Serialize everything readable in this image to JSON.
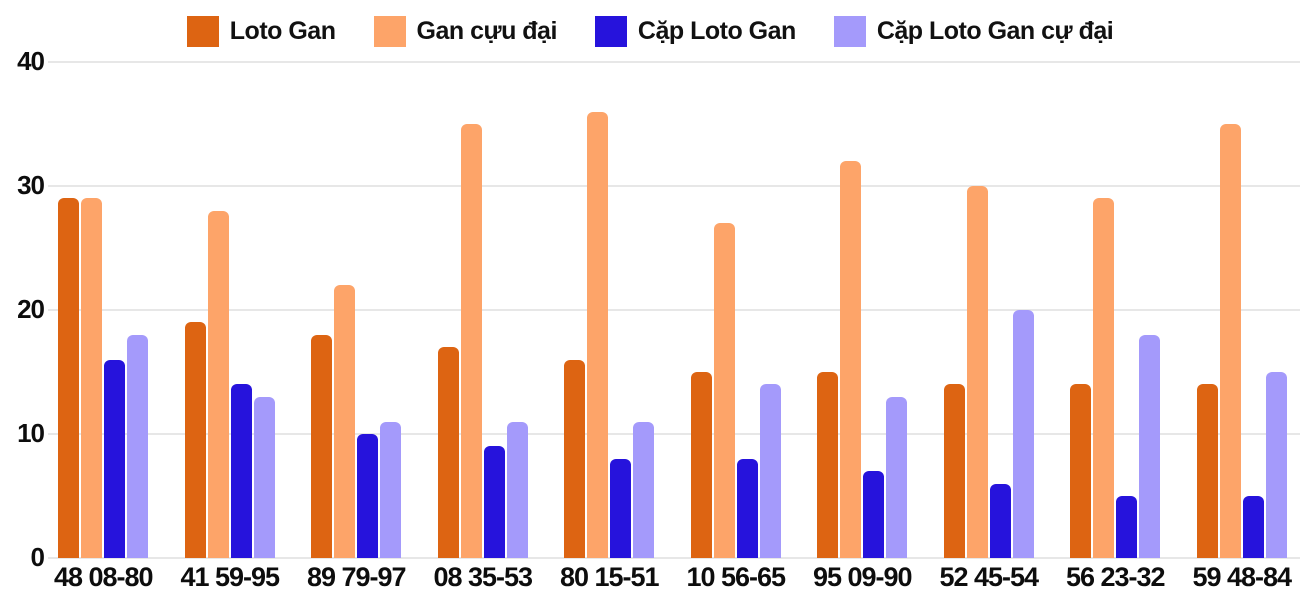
{
  "chart_data": {
    "type": "bar",
    "title": "",
    "xlabel": "",
    "ylabel": "",
    "ylim": [
      0,
      40
    ],
    "yticks": [
      0,
      10,
      20,
      30,
      40
    ],
    "grid": "horizontal",
    "legend_position": "top",
    "categories": [
      "48 08-80",
      "41 59-95",
      "89 79-97",
      "08 35-53",
      "80 15-51",
      "10 56-65",
      "95 09-90",
      "52 45-54",
      "56 23-32",
      "59 48-84"
    ],
    "series": [
      {
        "name": "Loto Gan",
        "color": "#DD6412",
        "values": [
          29,
          19,
          18,
          17,
          16,
          15,
          15,
          14,
          14,
          14
        ]
      },
      {
        "name": "Gan cựu đại",
        "color": "#FDA469",
        "values": [
          29,
          28,
          22,
          35,
          36,
          27,
          32,
          30,
          29,
          35
        ]
      },
      {
        "name": "Cặp Loto Gan",
        "color": "#2613DC",
        "values": [
          16,
          14,
          10,
          9,
          8,
          8,
          7,
          6,
          5,
          5
        ]
      },
      {
        "name": "Cặp Loto Gan cự đại",
        "color": "#A49AFB",
        "values": [
          18,
          13,
          11,
          11,
          11,
          14,
          13,
          20,
          18,
          15
        ]
      }
    ],
    "colors": {
      "grid": "#e7e7e7",
      "axis_text": "#0d0d0d",
      "legend_text": "#111111",
      "background": "#ffffff"
    }
  }
}
